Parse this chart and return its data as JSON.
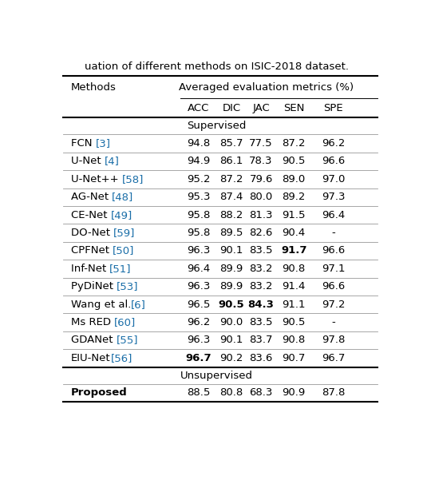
{
  "title": "uation of different methods on ISIC-2018 dataset.",
  "section_supervised": "Supervised",
  "section_unsupervised": "Unsupervised",
  "col_names": [
    "ACC",
    "DIC",
    "JAC",
    "SEN",
    "SPE"
  ],
  "rows_supervised": [
    {
      "method": "FCN [3]",
      "ref": "[3]",
      "pre": "FCN ",
      "ACC": "94.8",
      "DIC": "85.7",
      "JAC": "77.5",
      "SEN": "87.2",
      "SPE": "96.2",
      "bold": []
    },
    {
      "method": "U-Net [4]",
      "ref": "[4]",
      "pre": "U-Net ",
      "ACC": "94.9",
      "DIC": "86.1",
      "JAC": "78.3",
      "SEN": "90.5",
      "SPE": "96.6",
      "bold": []
    },
    {
      "method": "U-Net++ [58]",
      "ref": "[58]",
      "pre": "U-Net++ ",
      "ACC": "95.2",
      "DIC": "87.2",
      "JAC": "79.6",
      "SEN": "89.0",
      "SPE": "97.0",
      "bold": []
    },
    {
      "method": "AG-Net [48]",
      "ref": "[48]",
      "pre": "AG-Net ",
      "ACC": "95.3",
      "DIC": "87.4",
      "JAC": "80.0",
      "SEN": "89.2",
      "SPE": "97.3",
      "bold": []
    },
    {
      "method": "CE-Net [49]",
      "ref": "[49]",
      "pre": "CE-Net ",
      "ACC": "95.8",
      "DIC": "88.2",
      "JAC": "81.3",
      "SEN": "91.5",
      "SPE": "96.4",
      "bold": []
    },
    {
      "method": "DO-Net [59]",
      "ref": "[59]",
      "pre": "DO-Net ",
      "ACC": "95.8",
      "DIC": "89.5",
      "JAC": "82.6",
      "SEN": "90.4",
      "SPE": "-",
      "bold": []
    },
    {
      "method": "CPFNet [50]",
      "ref": "[50]",
      "pre": "CPFNet ",
      "ACC": "96.3",
      "DIC": "90.1",
      "JAC": "83.5",
      "SEN": "91.7",
      "SPE": "96.6",
      "bold": [
        "SEN"
      ]
    },
    {
      "method": "Inf-Net [51]",
      "ref": "[51]",
      "pre": "Inf-Net ",
      "ACC": "96.4",
      "DIC": "89.9",
      "JAC": "83.2",
      "SEN": "90.8",
      "SPE": "97.1",
      "bold": []
    },
    {
      "method": "PyDiNet [53]",
      "ref": "[53]",
      "pre": "PyDiNet ",
      "ACC": "96.3",
      "DIC": "89.9",
      "JAC": "83.2",
      "SEN": "91.4",
      "SPE": "96.6",
      "bold": []
    },
    {
      "method": "Wang et al.[6]",
      "ref": "[6]",
      "pre": "Wang et al.",
      "ACC": "96.5",
      "DIC": "90.5",
      "JAC": "84.3",
      "SEN": "91.1",
      "SPE": "97.2",
      "bold": [
        "DIC",
        "JAC"
      ]
    },
    {
      "method": "Ms RED [60]",
      "ref": "[60]",
      "pre": "Ms RED ",
      "ACC": "96.2",
      "DIC": "90.0",
      "JAC": "83.5",
      "SEN": "90.5",
      "SPE": "-",
      "bold": []
    },
    {
      "method": "GDANet [55]",
      "ref": "[55]",
      "pre": "GDANet ",
      "ACC": "96.3",
      "DIC": "90.1",
      "JAC": "83.7",
      "SEN": "90.8",
      "SPE": "97.8",
      "bold": []
    },
    {
      "method": "EIU-Net[56]",
      "ref": "[56]",
      "pre": "EIU-Net",
      "ACC": "96.7",
      "DIC": "90.2",
      "JAC": "83.6",
      "SEN": "90.7",
      "SPE": "96.7",
      "bold": [
        "ACC"
      ]
    }
  ],
  "rows_unsupervised": [
    {
      "method": "Proposed",
      "ref": "",
      "pre": "Proposed",
      "ACC": "88.5",
      "DIC": "80.8",
      "JAC": "68.3",
      "SEN": "90.9",
      "SPE": "87.8",
      "bold": [
        "method"
      ]
    }
  ],
  "bg_color": "#ffffff",
  "ref_color": "#1a6ea8",
  "text_color": "#000000",
  "line_color": "#000000",
  "header_line_color": "#000000",
  "thin_line_color": "#999999",
  "fs_title": 9.5,
  "fs_header": 9.5,
  "fs_data": 9.5,
  "fs_section": 9.5
}
